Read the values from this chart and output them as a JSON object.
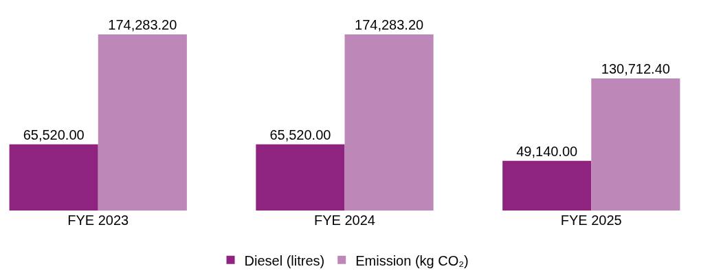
{
  "chart_data": {
    "type": "bar",
    "categories": [
      "FYE 2023",
      "FYE 2024",
      "FYE 2025"
    ],
    "series": [
      {
        "name": "Diesel (litres)",
        "color": "#8e2480",
        "values": [
          65520.0,
          65520.0,
          49140.0
        ],
        "value_labels": [
          "65,520.00",
          "65,520.00",
          "49,140.00"
        ]
      },
      {
        "name": "Emission (kg CO₂)",
        "color": "#bd88b8",
        "values": [
          174283.2,
          174283.2,
          130712.4
        ],
        "value_labels": [
          "174,283.20",
          "174,283.20",
          "130,712.40"
        ]
      }
    ],
    "legend": "bottom"
  }
}
